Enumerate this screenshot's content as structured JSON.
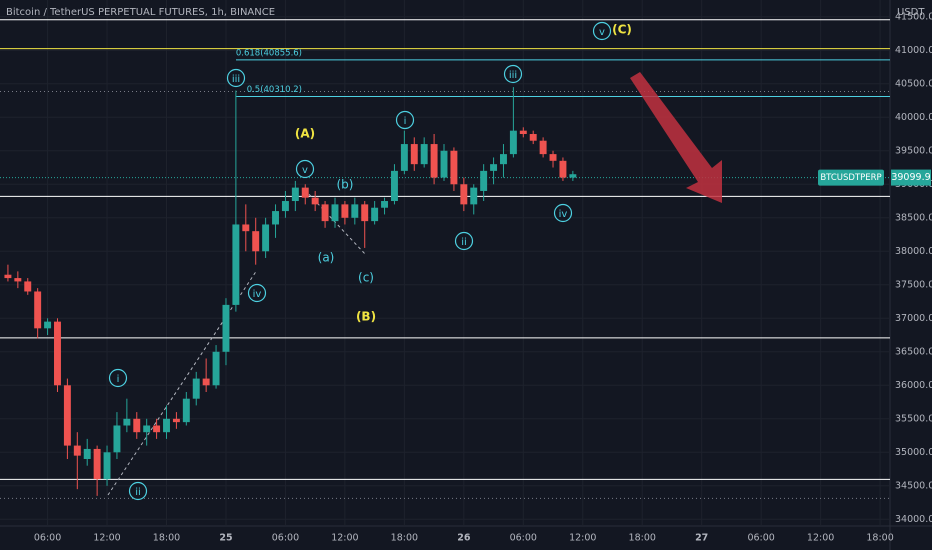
{
  "chart_data": {
    "type": "candlestick",
    "title": "Bitcoin / TetherUS PERPETUAL FUTURES, 1h, BINANCE",
    "currency": "USDT",
    "symbol": "BTCUSDTPERP",
    "last_price": 39099.9,
    "up_color": "#26a69a",
    "down_color": "#ef5350",
    "xlim": [
      1.2,
      91
    ],
    "ylim": [
      33900,
      41750
    ],
    "xticks": [
      {
        "value": 6,
        "label": "06:00"
      },
      {
        "value": 12,
        "label": "12:00"
      },
      {
        "value": 18,
        "label": "18:00"
      },
      {
        "value": 24,
        "label": "25"
      },
      {
        "value": 30,
        "label": "06:00"
      },
      {
        "value": 36,
        "label": "12:00"
      },
      {
        "value": 42,
        "label": "18:00"
      },
      {
        "value": 48,
        "label": "26"
      },
      {
        "value": 54,
        "label": "06:00"
      },
      {
        "value": 60,
        "label": "12:00"
      },
      {
        "value": 66,
        "label": "18:00"
      },
      {
        "value": 72,
        "label": "27"
      },
      {
        "value": 78,
        "label": "06:00"
      },
      {
        "value": 84,
        "label": "12:00"
      },
      {
        "value": 90,
        "label": "18:00"
      }
    ],
    "yticks": [
      {
        "value": 34000,
        "label": "34000.0"
      },
      {
        "value": 34500,
        "label": "34500.0"
      },
      {
        "value": 35000,
        "label": "35000.0"
      },
      {
        "value": 35500,
        "label": "35500.0"
      },
      {
        "value": 36000,
        "label": "36000.0"
      },
      {
        "value": 36500,
        "label": "36500.0"
      },
      {
        "value": 37000,
        "label": "37000.0"
      },
      {
        "value": 37500,
        "label": "37500.0"
      },
      {
        "value": 38000,
        "label": "38000.0"
      },
      {
        "value": 38500,
        "label": "38500.0"
      },
      {
        "value": 39000,
        "label": "39000.0"
      },
      {
        "value": 39500,
        "label": "39500.0"
      },
      {
        "value": 40000,
        "label": "40000.0"
      },
      {
        "value": 40500,
        "label": "40500.0"
      },
      {
        "value": 41000,
        "label": "41000.0"
      },
      {
        "value": 41500,
        "label": "41500.0"
      }
    ],
    "levels": [
      {
        "value": 41455,
        "color": "#ffffff",
        "style": "solid"
      },
      {
        "value": 41024,
        "color": "#f0e442",
        "style": "solid"
      },
      {
        "value": 40855.6,
        "color": "#4dd0e1",
        "style": "solid",
        "label": "0.618(40855.6)"
      },
      {
        "value": 40384,
        "color": "#787b86",
        "style": "dotted"
      },
      {
        "value": 40310.2,
        "color": "#4dd0e1",
        "style": "solid",
        "label": "0.5(40310.2)"
      },
      {
        "value": 38820,
        "color": "#ffffff",
        "style": "solid"
      },
      {
        "value": 36708,
        "color": "#ffffff",
        "style": "solid"
      },
      {
        "value": 34595,
        "color": "#ffffff",
        "style": "solid"
      },
      {
        "value": 34312,
        "color": "#787b86",
        "style": "dotted"
      }
    ],
    "annotations": [
      {
        "text": "iii",
        "color": "#4dd0e1",
        "circled": true
      },
      {
        "text": "i",
        "color": "#4dd0e1",
        "circled": true
      },
      {
        "text": "ii",
        "color": "#4dd0e1",
        "circled": true
      },
      {
        "text": "iv",
        "color": "#4dd0e1",
        "circled": true
      },
      {
        "text": "v",
        "color": "#4dd0e1",
        "circled": true
      },
      {
        "text": "(A)",
        "color": "#f0e442",
        "circled": false
      },
      {
        "text": "(b)",
        "color": "#4dd0e1",
        "circled": false
      },
      {
        "text": "(a)",
        "color": "#4dd0e1",
        "circled": false
      },
      {
        "text": "(c)",
        "color": "#4dd0e1",
        "circled": false
      },
      {
        "text": "(B)",
        "color": "#f0e442",
        "circled": false
      },
      {
        "text": "i",
        "color": "#4dd0e1",
        "circled": true
      },
      {
        "text": "ii",
        "color": "#4dd0e1",
        "circled": true
      },
      {
        "text": "iii",
        "color": "#4dd0e1",
        "circled": true
      },
      {
        "text": "iv",
        "color": "#4dd0e1",
        "circled": true
      },
      {
        "text": "v",
        "color": "#4dd0e1",
        "circled": true
      },
      {
        "text": "(C)",
        "color": "#f0e442",
        "circled": false
      }
    ],
    "candles": [
      {
        "x": 2,
        "open": 37650,
        "high": 37800,
        "low": 37550,
        "close": 37600
      },
      {
        "x": 3,
        "open": 37600,
        "high": 37700,
        "low": 37450,
        "close": 37550
      },
      {
        "x": 4,
        "open": 37550,
        "high": 37600,
        "low": 37350,
        "close": 37400
      },
      {
        "x": 5,
        "open": 37400,
        "high": 37450,
        "low": 36700,
        "close": 36850
      },
      {
        "x": 6,
        "open": 36850,
        "high": 37000,
        "low": 36750,
        "close": 36950
      },
      {
        "x": 7,
        "open": 36950,
        "high": 37000,
        "low": 35900,
        "close": 36000
      },
      {
        "x": 8,
        "open": 36000,
        "high": 36100,
        "low": 34900,
        "close": 35100
      },
      {
        "x": 9,
        "open": 35100,
        "high": 35300,
        "low": 34450,
        "close": 34950
      },
      {
        "x": 10,
        "open": 34900,
        "high": 35200,
        "low": 34800,
        "close": 35050
      },
      {
        "x": 11,
        "open": 35050,
        "high": 35100,
        "low": 34350,
        "close": 34600
      },
      {
        "x": 12,
        "open": 34600,
        "high": 35100,
        "low": 34500,
        "close": 35000
      },
      {
        "x": 13,
        "open": 35000,
        "high": 35600,
        "low": 34900,
        "close": 35400
      },
      {
        "x": 14,
        "open": 35400,
        "high": 35800,
        "low": 35300,
        "close": 35500
      },
      {
        "x": 15,
        "open": 35500,
        "high": 35600,
        "low": 35200,
        "close": 35300
      },
      {
        "x": 16,
        "open": 35300,
        "high": 35500,
        "low": 35100,
        "close": 35400
      },
      {
        "x": 17,
        "open": 35400,
        "high": 35500,
        "low": 35200,
        "close": 35300
      },
      {
        "x": 18,
        "open": 35300,
        "high": 35700,
        "low": 35200,
        "close": 35500
      },
      {
        "x": 19,
        "open": 35500,
        "high": 35600,
        "low": 35350,
        "close": 35450
      },
      {
        "x": 20,
        "open": 35450,
        "high": 35900,
        "low": 35400,
        "close": 35800
      },
      {
        "x": 21,
        "open": 35800,
        "high": 36200,
        "low": 35700,
        "close": 36100
      },
      {
        "x": 22,
        "open": 36100,
        "high": 36400,
        "low": 35900,
        "close": 36000
      },
      {
        "x": 23,
        "open": 36000,
        "high": 36600,
        "low": 35950,
        "close": 36500
      },
      {
        "x": 24,
        "open": 36500,
        "high": 37300,
        "low": 36300,
        "close": 37200
      },
      {
        "x": 25,
        "open": 37200,
        "high": 40400,
        "low": 37100,
        "close": 38400
      },
      {
        "x": 26,
        "open": 38400,
        "high": 38700,
        "low": 38000,
        "close": 38300
      },
      {
        "x": 27,
        "open": 38300,
        "high": 38500,
        "low": 37800,
        "close": 38000
      },
      {
        "x": 28,
        "open": 38000,
        "high": 38500,
        "low": 37900,
        "close": 38400
      },
      {
        "x": 29,
        "open": 38400,
        "high": 38700,
        "low": 38200,
        "close": 38600
      },
      {
        "x": 30,
        "open": 38600,
        "high": 38900,
        "low": 38500,
        "close": 38750
      },
      {
        "x": 31,
        "open": 38750,
        "high": 39050,
        "low": 38600,
        "close": 38950
      },
      {
        "x": 32,
        "open": 38950,
        "high": 39000,
        "low": 38700,
        "close": 38800
      },
      {
        "x": 33,
        "open": 38800,
        "high": 38900,
        "low": 38600,
        "close": 38700
      },
      {
        "x": 34,
        "open": 38700,
        "high": 38750,
        "low": 38350,
        "close": 38450
      },
      {
        "x": 35,
        "open": 38450,
        "high": 38800,
        "low": 38350,
        "close": 38700
      },
      {
        "x": 36,
        "open": 38700,
        "high": 38750,
        "low": 38400,
        "close": 38500
      },
      {
        "x": 37,
        "open": 38500,
        "high": 38800,
        "low": 38400,
        "close": 38700
      },
      {
        "x": 38,
        "open": 38700,
        "high": 38750,
        "low": 38050,
        "close": 38450
      },
      {
        "x": 39,
        "open": 38450,
        "high": 38750,
        "low": 38400,
        "close": 38650
      },
      {
        "x": 40,
        "open": 38650,
        "high": 38800,
        "low": 38550,
        "close": 38750
      },
      {
        "x": 41,
        "open": 38750,
        "high": 39300,
        "low": 38700,
        "close": 39200
      },
      {
        "x": 42,
        "open": 39200,
        "high": 39800,
        "low": 39150,
        "close": 39600
      },
      {
        "x": 43,
        "open": 39600,
        "high": 39700,
        "low": 39200,
        "close": 39300
      },
      {
        "x": 44,
        "open": 39300,
        "high": 39700,
        "low": 39250,
        "close": 39600
      },
      {
        "x": 45,
        "open": 39600,
        "high": 39750,
        "low": 39000,
        "close": 39100
      },
      {
        "x": 46,
        "open": 39100,
        "high": 39600,
        "low": 39050,
        "close": 39500
      },
      {
        "x": 47,
        "open": 39500,
        "high": 39550,
        "low": 38900,
        "close": 39000
      },
      {
        "x": 48,
        "open": 39000,
        "high": 39100,
        "low": 38600,
        "close": 38700
      },
      {
        "x": 49,
        "open": 38700,
        "high": 39000,
        "low": 38550,
        "close": 38950
      },
      {
        "x": 50,
        "open": 38900,
        "high": 39300,
        "low": 38750,
        "close": 39200
      },
      {
        "x": 51,
        "open": 39200,
        "high": 39400,
        "low": 39000,
        "close": 39300
      },
      {
        "x": 52,
        "open": 39300,
        "high": 39600,
        "low": 39100,
        "close": 39450
      },
      {
        "x": 53,
        "open": 39450,
        "high": 40450,
        "low": 39400,
        "close": 39800
      },
      {
        "x": 54,
        "open": 39800,
        "high": 39850,
        "low": 39700,
        "close": 39750
      },
      {
        "x": 55,
        "open": 39750,
        "high": 39800,
        "low": 39600,
        "close": 39650
      },
      {
        "x": 56,
        "open": 39650,
        "high": 39700,
        "low": 39400,
        "close": 39450
      },
      {
        "x": 57,
        "open": 39450,
        "high": 39500,
        "low": 39250,
        "close": 39350
      },
      {
        "x": 58,
        "open": 39350,
        "high": 39400,
        "low": 39050,
        "close": 39100
      },
      {
        "x": 59,
        "open": 39100,
        "high": 39200,
        "low": 39050,
        "close": 39150
      }
    ]
  }
}
